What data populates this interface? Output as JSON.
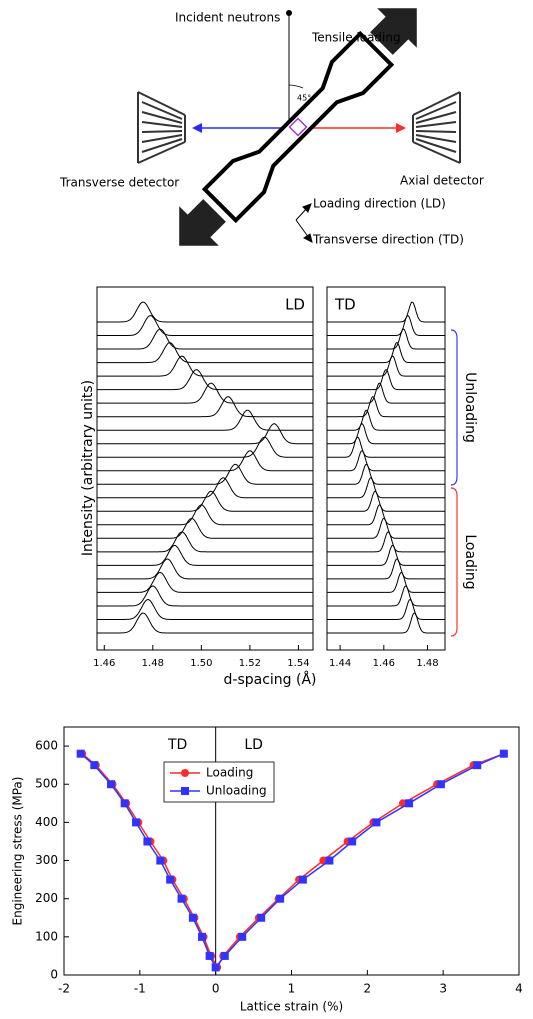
{
  "diagram": {
    "incident_beam": "Incident neutrons",
    "loading": "Tensile loading",
    "angle": "45°",
    "transverse_detector": "Transverse detector",
    "axial_detector": "Axial detector",
    "ld_axis": "Loading direction (LD)",
    "td_axis": "Transverse direction (TD)"
  },
  "chart_data": [
    {
      "type": "ridgeline",
      "title": "LD",
      "ylabel": "Intensity (arbitrary units)",
      "xlabel": "d-spacing (Å)",
      "xlim": [
        1.457,
        1.546
      ],
      "xticks": [
        1.46,
        1.48,
        {
          "value": 1.5,
          "label": "1.50"
        },
        1.52,
        1.54
      ],
      "color": "#000000",
      "peak_positions": [
        1.476,
        1.478,
        1.48,
        1.483,
        1.486,
        1.489,
        1.492,
        1.496,
        1.5,
        1.504,
        1.509,
        1.514,
        1.52,
        1.526,
        1.53,
        1.519,
        1.511,
        1.504,
        1.498,
        1.492,
        1.487,
        1.483,
        1.479,
        1.476
      ]
    },
    {
      "type": "ridgeline",
      "title": "TD",
      "annotations": [
        "Unloading",
        "Loading"
      ],
      "xlim": [
        1.434,
        1.488
      ],
      "xticks": [
        1.44,
        1.46,
        1.48
      ],
      "color": "#000000",
      "peak_positions": [
        1.474,
        1.472,
        1.47,
        1.468,
        1.466,
        1.464,
        1.462,
        1.46,
        1.458,
        1.456,
        1.454,
        1.452,
        1.45,
        1.448,
        1.45,
        1.452,
        1.455,
        1.458,
        1.461,
        1.464,
        1.466,
        1.469,
        1.471,
        1.473
      ]
    },
    {
      "type": "line",
      "xlabel": "Lattice strain (%)",
      "ylabel": "Engineering stress (MPa)",
      "annotations": [
        "TD",
        "LD"
      ],
      "xlim": [
        -2,
        4
      ],
      "xticks": [
        -2,
        -1,
        0,
        1,
        2,
        3,
        4
      ],
      "ylim": [
        0,
        650
      ],
      "yticks": [
        0,
        100,
        200,
        300,
        400,
        500,
        600
      ],
      "vline": 0,
      "legend": "upper left",
      "series": [
        {
          "name": "Loading",
          "color": "#ff2a2a",
          "marker": "circle",
          "x": [
            -1.76,
            -1.58,
            -1.36,
            -1.18,
            -1.02,
            -0.86,
            -0.69,
            -0.57,
            -0.42,
            -0.28,
            -0.16,
            -0.06,
            0.02,
            0.1,
            0.32,
            0.57,
            0.83,
            1.1,
            1.42,
            1.74,
            2.08,
            2.47,
            2.92,
            3.4,
            3.8
          ],
          "values": [
            580,
            550,
            500,
            450,
            400,
            350,
            300,
            250,
            200,
            150,
            100,
            50,
            20,
            50,
            100,
            150,
            200,
            250,
            300,
            350,
            400,
            450,
            500,
            550,
            580
          ]
        },
        {
          "name": "Unloading",
          "color": "#3333ff",
          "marker": "square",
          "x": [
            -1.78,
            -1.6,
            -1.38,
            -1.2,
            -1.05,
            -0.9,
            -0.73,
            -0.6,
            -0.45,
            -0.3,
            -0.18,
            -0.08,
            0,
            0.12,
            0.35,
            0.6,
            0.85,
            1.15,
            1.5,
            1.8,
            2.12,
            2.55,
            2.97,
            3.45,
            3.8
          ],
          "values": [
            580,
            550,
            500,
            450,
            400,
            350,
            300,
            250,
            200,
            150,
            100,
            50,
            20,
            50,
            100,
            150,
            200,
            250,
            300,
            350,
            400,
            450,
            500,
            550,
            580
          ]
        }
      ]
    }
  ]
}
